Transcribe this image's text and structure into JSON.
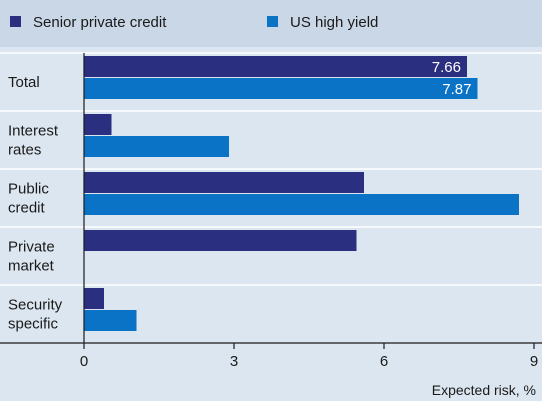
{
  "chart_data": {
    "type": "bar",
    "orientation": "horizontal",
    "categories": [
      "Total",
      "Interest\nrates",
      "Public\ncredit",
      "Private\nmarket",
      "Security\nspecific"
    ],
    "series": [
      {
        "name": "Senior private credit",
        "color": "#2b2f7f",
        "values": [
          7.66,
          0.55,
          5.6,
          5.45,
          0.4
        ]
      },
      {
        "name": "US high yield",
        "color": "#0b73c6",
        "values": [
          7.87,
          2.9,
          8.7,
          null,
          1.05
        ]
      }
    ],
    "data_labels": [
      [
        "7.66",
        "",
        "",
        "",
        ""
      ],
      [
        "7.87",
        "",
        "",
        "",
        ""
      ]
    ],
    "xticks": [
      0,
      3,
      6,
      9
    ],
    "xlim": [
      0,
      9
    ],
    "xlabel": "Expected risk, %",
    "grid": false,
    "legend": "top-left"
  }
}
